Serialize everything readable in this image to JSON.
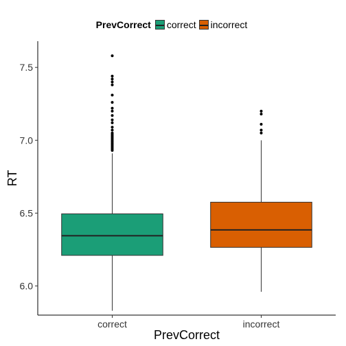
{
  "chart_data": {
    "type": "boxplot",
    "title": "",
    "xlabel": "PrevCorrect",
    "ylabel": "RT",
    "ylim": [
      5.8,
      7.68
    ],
    "yticks": [
      6.0,
      6.5,
      7.0,
      7.5
    ],
    "ytick_labels": [
      "6.0",
      "6.5",
      "7.0",
      "7.5"
    ],
    "grid": false,
    "legend": {
      "position": "top",
      "title": "PrevCorrect"
    },
    "categories": [
      "correct",
      "incorrect"
    ],
    "series": [
      {
        "name": "correct",
        "color": "#1b9e77",
        "whisker_low": 5.83,
        "q1": 6.21,
        "median": 6.345,
        "q3": 6.495,
        "whisker_high": 6.91,
        "outliers": [
          6.93,
          6.94,
          6.95,
          6.96,
          6.97,
          6.98,
          6.99,
          7.0,
          7.01,
          7.02,
          7.03,
          7.04,
          7.05,
          7.07,
          7.09,
          7.12,
          7.14,
          7.17,
          7.2,
          7.22,
          7.26,
          7.31,
          7.38,
          7.4,
          7.42,
          7.44,
          7.58
        ]
      },
      {
        "name": "incorrect",
        "color": "#d95f02",
        "whisker_low": 5.96,
        "q1": 6.265,
        "median": 6.385,
        "q3": 6.575,
        "whisker_high": 7.0,
        "outliers": [
          7.05,
          7.07,
          7.11,
          7.18,
          7.2
        ]
      }
    ]
  }
}
